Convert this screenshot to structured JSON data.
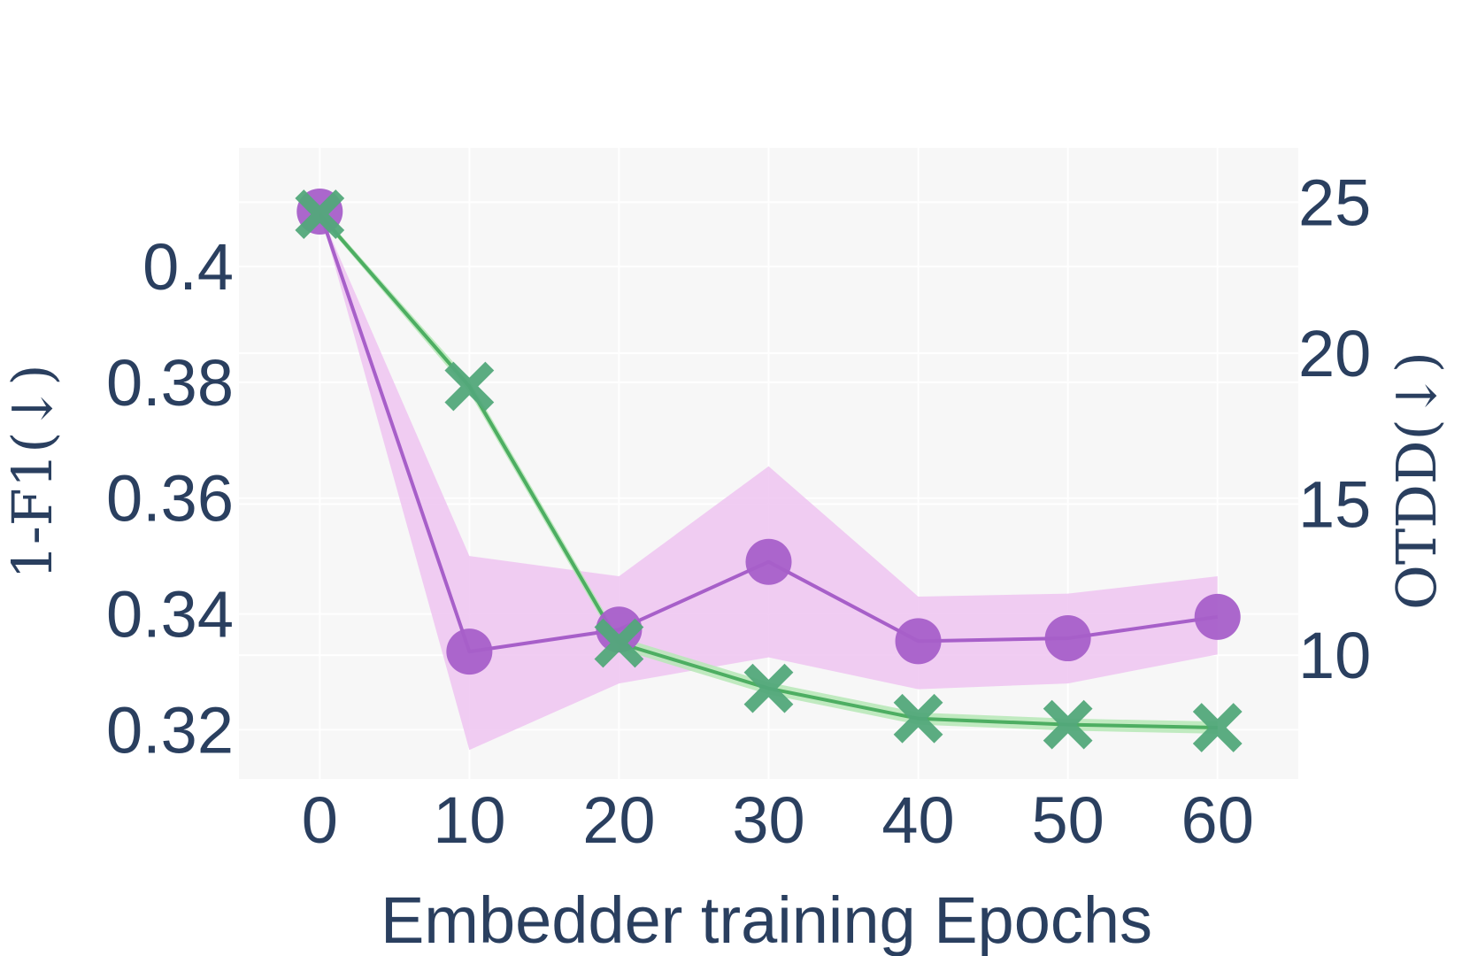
{
  "chart_data": {
    "type": "line",
    "xlabel": "Embedder training Epochs",
    "ylabel_left": "1-F1(↓)",
    "ylabel_right": "OTDD(↓)",
    "x": [
      0,
      10,
      20,
      30,
      40,
      50,
      60
    ],
    "x_ticks": [
      "0",
      "10",
      "20",
      "30",
      "40",
      "50",
      "60"
    ],
    "xlim": [
      -5.4,
      65.4
    ],
    "y_left_ticks": [
      "0.32",
      "0.34",
      "0.36",
      "0.38",
      "0.4"
    ],
    "y_left_tick_values": [
      0.32,
      0.34,
      0.36,
      0.38,
      0.4
    ],
    "ylim_left": [
      0.3115,
      0.4205
    ],
    "y_right_ticks": [
      "10",
      "15",
      "20",
      "25"
    ],
    "y_right_tick_values": [
      10,
      15,
      20,
      25
    ],
    "ylim_right": [
      5.9,
      26.8
    ],
    "grid": true,
    "series": [
      {
        "axis": "left",
        "marker": "circle",
        "color": "#a75fc9",
        "band_color": "#efc4f1",
        "values": [
          0.4095,
          0.3335,
          0.3373,
          0.349,
          0.3353,
          0.3358,
          0.3395
        ],
        "band_upper": [
          0.4095,
          0.35,
          0.3465,
          0.3655,
          0.343,
          0.3435,
          0.3465
        ],
        "band_lower": [
          0.4095,
          0.3165,
          0.328,
          0.3325,
          0.327,
          0.328,
          0.333
        ]
      },
      {
        "axis": "right",
        "marker": "x",
        "color": "#4dae62",
        "marker_color": "#52a87a",
        "band_color": "#b6e8b6",
        "values": [
          24.6,
          18.9,
          10.4,
          8.9,
          7.9,
          7.7,
          7.6
        ],
        "band_upper": [
          24.7,
          19.1,
          10.6,
          9.1,
          8.1,
          7.9,
          7.8
        ],
        "band_lower": [
          24.5,
          18.7,
          10.2,
          8.7,
          7.7,
          7.5,
          7.4
        ]
      }
    ]
  }
}
